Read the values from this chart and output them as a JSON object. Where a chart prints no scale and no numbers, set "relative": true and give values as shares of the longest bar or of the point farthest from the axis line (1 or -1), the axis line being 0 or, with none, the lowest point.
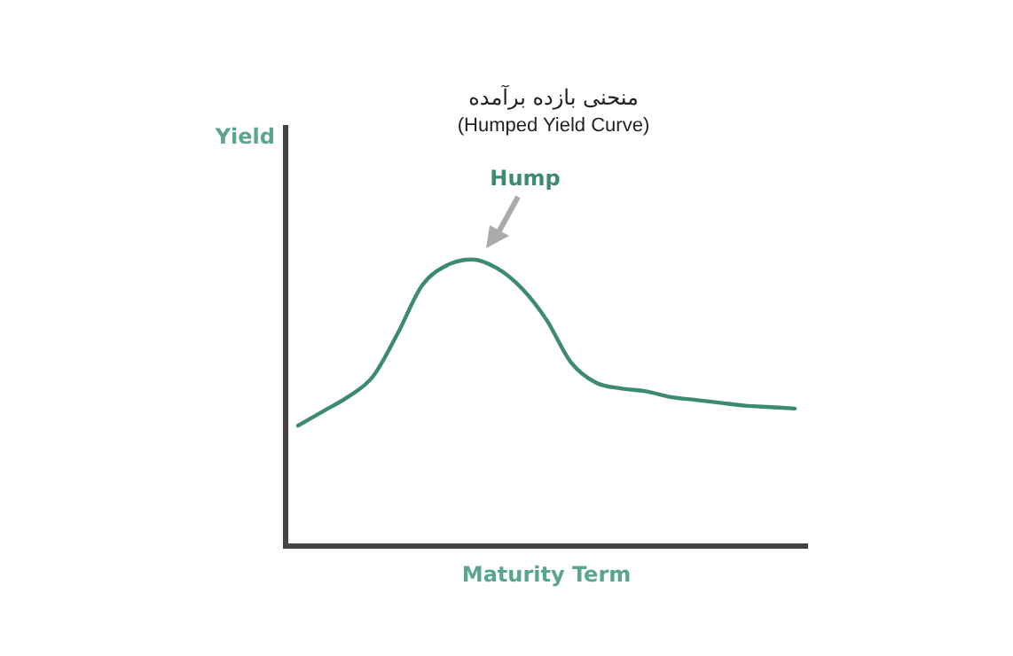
{
  "chart_data": {
    "type": "line",
    "title": "منحنی بازده برآمده",
    "subtitle": "(Humped Yield Curve)",
    "xlabel": "Maturity Term",
    "annotations": [
      "Hump",
      "Yield"
    ],
    "relative": true,
    "marker": "none",
    "line_style": "solid",
    "categories": [
      null,
      null,
      null,
      null,
      null,
      null,
      null,
      null,
      null,
      null,
      null,
      null,
      null,
      null,
      null,
      null,
      null,
      null,
      null,
      null,
      null
    ],
    "series": [
      {
        "color": "#3d8a74",
        "values": [
          0.42,
          0.47,
          0.52,
          0.59,
          0.74,
          0.91,
          0.98,
          1.0,
          0.97,
          0.9,
          0.79,
          0.64,
          0.57,
          0.55,
          0.54,
          0.52,
          0.51,
          0.5,
          0.49,
          0.485,
          0.48
        ]
      }
    ]
  }
}
